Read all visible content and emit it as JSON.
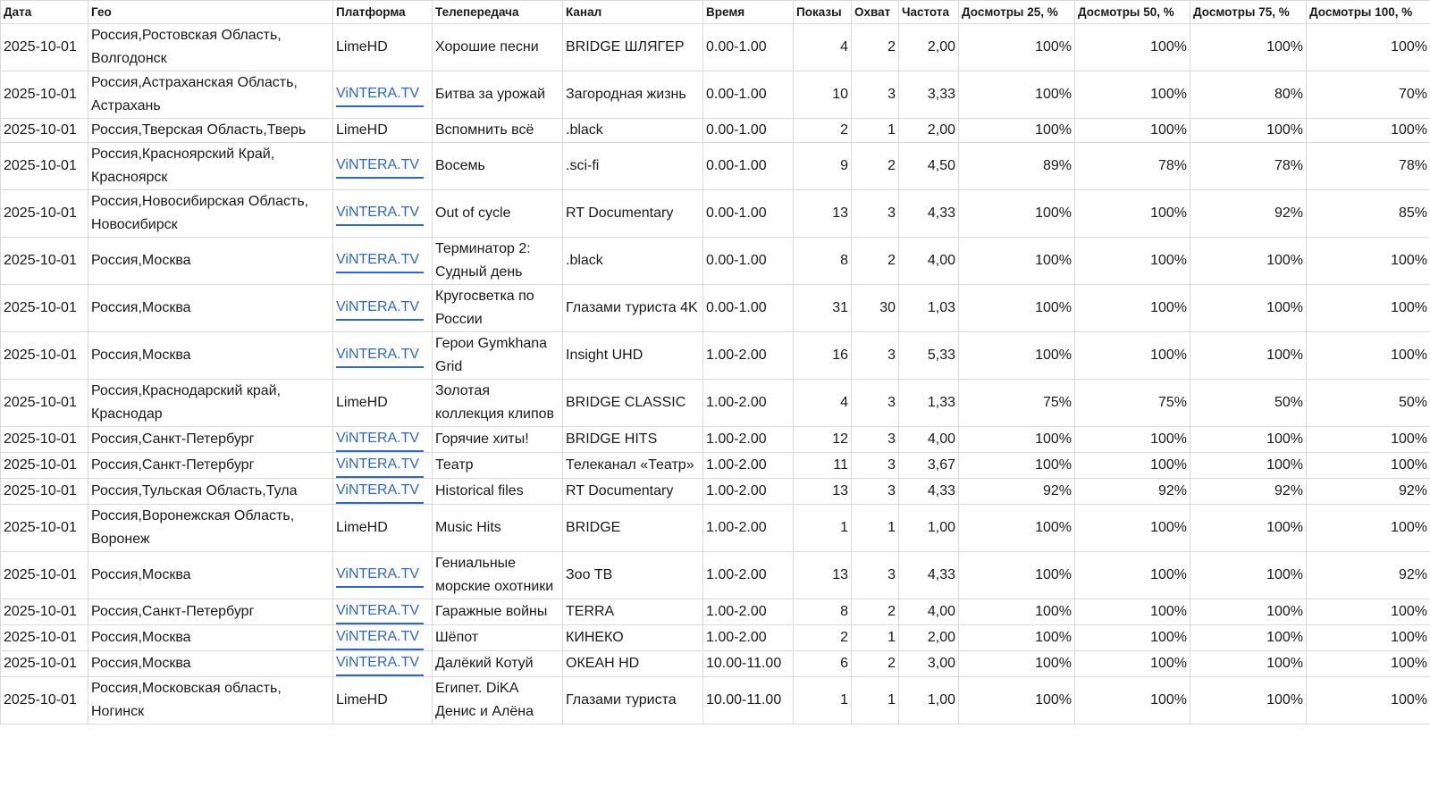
{
  "table": {
    "header": [
      "Дата",
      "Гео",
      "Платформа",
      "Телепередача",
      "Канал",
      "Время",
      "Показы",
      "Охват",
      "Частота",
      "Досмотры 25, %",
      "Досмотры 50, %",
      "Досмотры 75, %",
      "Досмотры 100, %"
    ],
    "rows": [
      [
        "2025-10-01",
        "Россия,Ростовская Область, Волгодонск",
        "LimeHD",
        "Хорошие песни",
        "BRIDGE ШЛЯГЕР",
        "0.00-1.00",
        "4",
        "2",
        "2,00",
        "100%",
        "100%",
        "100%",
        "100%"
      ],
      [
        "2025-10-01",
        "Россия,Астраханская Область, Астрахань",
        {
          "text": "ViNTERA.TV",
          "link": true
        },
        "Битва за урожай",
        "Загородная жизнь",
        "0.00-1.00",
        "10",
        "3",
        "3,33",
        "100%",
        "100%",
        "80%",
        "70%"
      ],
      [
        "2025-10-01",
        "Россия,Тверская Область,Тверь",
        "LimeHD",
        "Вспомнить всё",
        ".black",
        "0.00-1.00",
        "2",
        "1",
        "2,00",
        "100%",
        "100%",
        "100%",
        "100%"
      ],
      [
        "2025-10-01",
        "Россия,Красноярский Край, Красноярск",
        {
          "text": "ViNTERA.TV",
          "link": true
        },
        "Восемь",
        ".sci-fi",
        "0.00-1.00",
        "9",
        "2",
        "4,50",
        "89%",
        "78%",
        "78%",
        "78%"
      ],
      [
        "2025-10-01",
        "Россия,Новосибирская Область, Новосибирск",
        {
          "text": "ViNTERA.TV",
          "link": true
        },
        "Out of cycle",
        "RT Documentary",
        "0.00-1.00",
        "13",
        "3",
        "4,33",
        "100%",
        "100%",
        "92%",
        "85%"
      ],
      [
        "2025-10-01",
        "Россия,Москва",
        {
          "text": "ViNTERA.TV",
          "link": true
        },
        "Терминатор 2: Судный день",
        ".black",
        "0.00-1.00",
        "8",
        "2",
        "4,00",
        "100%",
        "100%",
        "100%",
        "100%"
      ],
      [
        "2025-10-01",
        "Россия,Москва",
        {
          "text": "ViNTERA.TV",
          "link": true
        },
        "Кругосветка по России",
        "Глазами туриста 4K",
        "0.00-1.00",
        "31",
        "30",
        "1,03",
        "100%",
        "100%",
        "100%",
        "100%"
      ],
      [
        "2025-10-01",
        "Россия,Москва",
        {
          "text": "ViNTERA.TV",
          "link": true
        },
        "Герои Gymkhana Grid",
        "Insight UHD",
        "1.00-2.00",
        "16",
        "3",
        "5,33",
        "100%",
        "100%",
        "100%",
        "100%"
      ],
      [
        "2025-10-01",
        "Россия,Краснодарский край, Краснодар",
        "LimeHD",
        "Золотая коллекция клипов",
        "BRIDGE CLASSIC",
        "1.00-2.00",
        "4",
        "3",
        "1,33",
        "75%",
        "75%",
        "50%",
        "50%"
      ],
      [
        "2025-10-01",
        "Россия,Санкт-Петербург",
        {
          "text": "ViNTERA.TV",
          "link": true
        },
        "Горячие хиты!",
        "BRIDGE HITS",
        "1.00-2.00",
        "12",
        "3",
        "4,00",
        "100%",
        "100%",
        "100%",
        "100%"
      ],
      [
        "2025-10-01",
        "Россия,Санкт-Петербург",
        {
          "text": "ViNTERA.TV",
          "link": true
        },
        "Театр",
        "Телеканал «Театр»",
        "1.00-2.00",
        "11",
        "3",
        "3,67",
        "100%",
        "100%",
        "100%",
        "100%"
      ],
      [
        "2025-10-01",
        "Россия,Тульская Область,Тула",
        {
          "text": "ViNTERA.TV",
          "link": true
        },
        "Historical files",
        "RT Documentary",
        "1.00-2.00",
        "13",
        "3",
        "4,33",
        "92%",
        "92%",
        "92%",
        "92%"
      ],
      [
        "2025-10-01",
        "Россия,Воронежская Область, Воронеж",
        "LimeHD",
        "Music Hits",
        "BRIDGE",
        "1.00-2.00",
        "1",
        "1",
        "1,00",
        "100%",
        "100%",
        "100%",
        "100%"
      ],
      [
        "2025-10-01",
        "Россия,Москва",
        {
          "text": "ViNTERA.TV",
          "link": true
        },
        "Гениальные морские охотники",
        "Зоо ТВ",
        "1.00-2.00",
        "13",
        "3",
        "4,33",
        "100%",
        "100%",
        "100%",
        "92%"
      ],
      [
        "2025-10-01",
        "Россия,Санкт-Петербург",
        {
          "text": "ViNTERA.TV",
          "link": true
        },
        "Гаражные войны",
        "TERRA",
        "1.00-2.00",
        "8",
        "2",
        "4,00",
        "100%",
        "100%",
        "100%",
        "100%"
      ],
      [
        "2025-10-01",
        "Россия,Москва",
        {
          "text": "ViNTERA.TV",
          "link": true
        },
        "Шёпот",
        "КИНЕКО",
        "1.00-2.00",
        "2",
        "1",
        "2,00",
        "100%",
        "100%",
        "100%",
        "100%"
      ],
      [
        "2025-10-01",
        "Россия,Москва",
        {
          "text": "ViNTERA.TV",
          "link": true
        },
        "Далёкий Котуй",
        "ОКЕАН HD",
        "10.00-11.00",
        "6",
        "2",
        "3,00",
        "100%",
        "100%",
        "100%",
        "100%"
      ],
      [
        "2025-10-01",
        "Россия,Московская область, Ногинск",
        "LimeHD",
        "Египет. DiKA Денис и Алёна",
        "Глазами туриста",
        "10.00-11.00",
        "1",
        "1",
        "1,00",
        "100%",
        "100%",
        "100%",
        "100%"
      ]
    ]
  }
}
